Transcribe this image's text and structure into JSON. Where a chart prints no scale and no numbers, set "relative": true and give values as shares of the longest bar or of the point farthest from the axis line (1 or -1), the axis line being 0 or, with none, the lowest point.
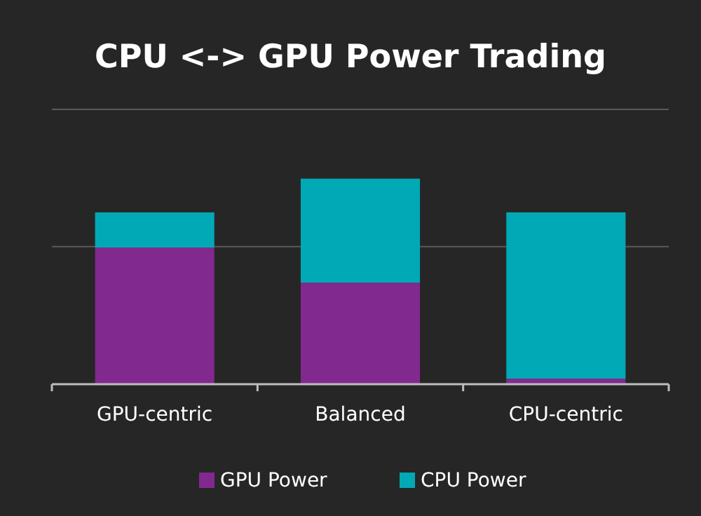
{
  "chart_data": {
    "type": "bar",
    "title": "CPU <-> GPU Power Trading",
    "categories": [
      "GPU-centric",
      "Balanced",
      "CPU-centric"
    ],
    "stacked": true,
    "relative": true,
    "ref_lines": [
      {
        "axis": "y",
        "value": 0.669,
        "color": "#5a5a5a"
      },
      {
        "axis": "y",
        "value": 1.337,
        "color": "#5a5a5a"
      }
    ],
    "legend": "bottom",
    "series": [
      {
        "name": "GPU Power",
        "color": "#82298f",
        "values": [
          0.665,
          0.494,
          0.027
        ]
      },
      {
        "name": "CPU Power",
        "color": "#00a9b5",
        "values": [
          0.171,
          0.506,
          0.809
        ]
      }
    ]
  }
}
